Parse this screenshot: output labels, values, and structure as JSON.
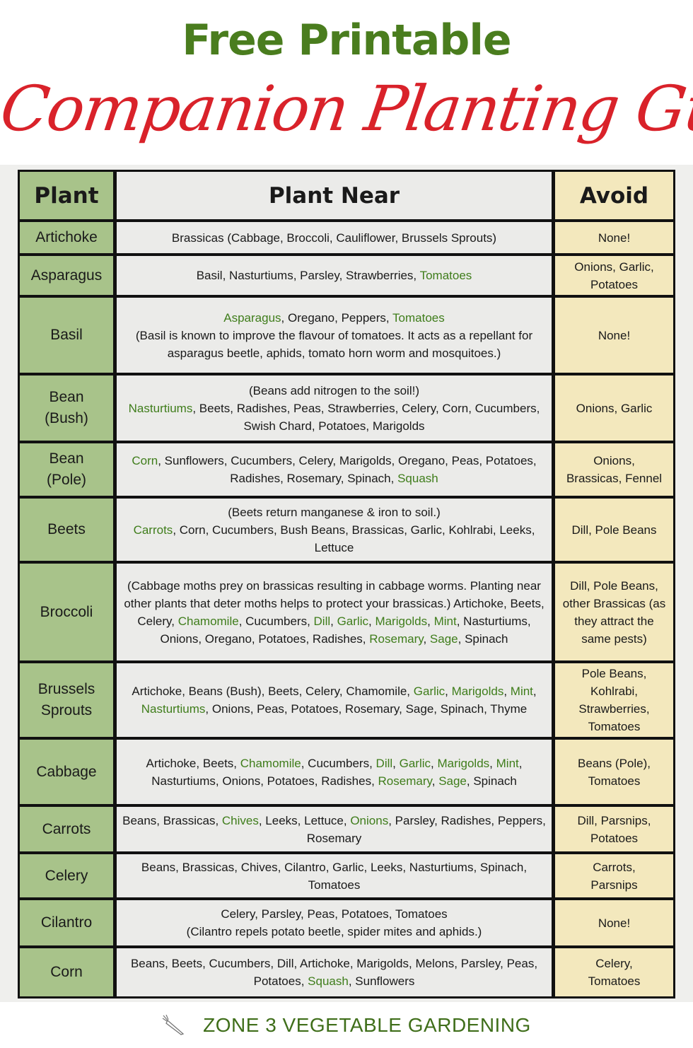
{
  "header": {
    "title_line1": "Free Printable",
    "title_line2": "Companion Planting Guide"
  },
  "colors": {
    "title_green": "#4a7d1e",
    "title_red": "#d9222a",
    "plant_column": "#a8c38a",
    "near_column": "#ebebe9",
    "avoid_column": "#f3e8bd",
    "highlight_text": "#3f7d1b"
  },
  "table": {
    "columns": [
      "Plant",
      "Plant Near",
      "Avoid"
    ],
    "rows": [
      {
        "plant": "Artichoke",
        "h": 44,
        "near": [
          {
            "t": "Brassicas (Cabbage, Broccoli, Cauliflower, Brussels Sprouts)"
          }
        ],
        "avoid": "None!"
      },
      {
        "plant": "Asparagus",
        "h": 55,
        "near": [
          {
            "t": "Basil, Nasturtiums, Parsley, Strawberries, "
          },
          {
            "t": "Tomatoes",
            "g": true
          }
        ],
        "avoid": "Onions, Garlic, Potatoes"
      },
      {
        "plant": "Basil",
        "h": 106,
        "near": [
          {
            "t": "Asparagus",
            "g": true
          },
          {
            "t": ", Oregano, Peppers, "
          },
          {
            "t": "Tomatoes",
            "g": true
          },
          {
            "t": "\n(Basil is known to improve the flavour of tomatoes.  It acts as a repellant for asparagus beetle, aphids, tomato horn worm and mosquitoes.)"
          }
        ],
        "avoid": "None!"
      },
      {
        "plant": "Bean\n(Bush)",
        "h": 92,
        "near": [
          {
            "t": "(Beans add nitrogen to the soil!)\n"
          },
          {
            "t": "Nasturtiums",
            "g": true
          },
          {
            "t": ", Beets, Radishes, Peas, Strawberries,  Celery, Corn, Cucumbers, Swish Chard, Potatoes, Marigolds"
          }
        ],
        "avoid": "Onions, Garlic"
      },
      {
        "plant": "Bean\n(Pole)",
        "h": 74,
        "near": [
          {
            "t": "Corn",
            "g": true
          },
          {
            "t": ", Sunflowers, Cucumbers, Celery, Marigolds, Oregano, Peas, Potatoes, Radishes, Rosemary, Spinach, "
          },
          {
            "t": "Squash",
            "g": true
          }
        ],
        "avoid": "Onions,\nBrassicas, Fennel"
      },
      {
        "plant": "Beets",
        "h": 88,
        "near": [
          {
            "t": "(Beets return manganese & iron to soil.)\n"
          },
          {
            "t": "Carrots",
            "g": true
          },
          {
            "t": ", Corn,  Cucumbers, Bush Beans, Brassicas, Garlic, Kohlrabi, Leeks, Lettuce"
          }
        ],
        "avoid": "Dill, Pole Beans"
      },
      {
        "plant": "Broccoli",
        "h": 137,
        "near": [
          {
            "t": "(Cabbage moths prey on brassicas resulting in cabbage worms. Planting near other plants that deter moths helps to protect your brassicas.)  Artichoke, Beets, Celery, "
          },
          {
            "t": "Chamomile",
            "g": true
          },
          {
            "t": ", Cucumbers, "
          },
          {
            "t": "Dill",
            "g": true
          },
          {
            "t": ", "
          },
          {
            "t": "Garlic",
            "g": true
          },
          {
            "t": ", "
          },
          {
            "t": "Marigolds",
            "g": true
          },
          {
            "t": ", "
          },
          {
            "t": "Mint",
            "g": true
          },
          {
            "t": ", Nasturtiums, Onions, Oregano, Potatoes, Radishes, "
          },
          {
            "t": "Rosemary",
            "g": true
          },
          {
            "t": ", "
          },
          {
            "t": "Sage",
            "g": true
          },
          {
            "t": ", Spinach"
          }
        ],
        "avoid": "Dill, Pole Beans, other Brassicas (as they attract the same pests)"
      },
      {
        "plant": "Brussels\nSprouts",
        "h": 101,
        "near": [
          {
            "t": "Artichoke, Beans (Bush),  Beets, Celery, Chamomile, "
          },
          {
            "t": "Garlic",
            "g": true
          },
          {
            "t": ", "
          },
          {
            "t": "Marigolds",
            "g": true
          },
          {
            "t": ", "
          },
          {
            "t": "Mint",
            "g": true
          },
          {
            "t": ", "
          },
          {
            "t": "Nasturtiums",
            "g": true
          },
          {
            "t": ", Onions, Peas, Potatoes, Rosemary, Sage, Spinach, Thyme"
          }
        ],
        "avoid": "Pole Beans, Kohlrabi, Strawberries, Tomatoes"
      },
      {
        "plant": "Cabbage",
        "h": 91,
        "near": [
          {
            "t": "Artichoke, Beets, "
          },
          {
            "t": "Chamomile",
            "g": true
          },
          {
            "t": ", Cucumbers, "
          },
          {
            "t": "Dill",
            "g": true
          },
          {
            "t": ", "
          },
          {
            "t": "Garlic",
            "g": true
          },
          {
            "t": ", "
          },
          {
            "t": "Marigolds",
            "g": true
          },
          {
            "t": ", "
          },
          {
            "t": "Mint",
            "g": true
          },
          {
            "t": ", Nasturtiums, Onions, Potatoes, Radishes, "
          },
          {
            "t": "Rosemary",
            "g": true
          },
          {
            "t": ", "
          },
          {
            "t": "Sage",
            "g": true
          },
          {
            "t": ", Spinach"
          }
        ],
        "avoid": "Beans (Pole), Tomatoes"
      },
      {
        "plant": "Carrots",
        "h": 63,
        "near": [
          {
            "t": "Beans, Brassicas, "
          },
          {
            "t": "Chives",
            "g": true
          },
          {
            "t": ", Leeks, Lettuce, "
          },
          {
            "t": "Onions",
            "g": true
          },
          {
            "t": ", Parsley, Radishes, Peppers, Rosemary"
          }
        ],
        "avoid": "Dill, Parsnips, Potatoes"
      },
      {
        "plant": "Celery",
        "h": 61,
        "near": [
          {
            "t": "Beans, Brassicas, Chives, Cilantro, Garlic, Leeks, Nasturtiums, Spinach, Tomatoes"
          }
        ],
        "avoid": "Carrots,\nParsnips"
      },
      {
        "plant": "Cilantro",
        "h": 64,
        "near": [
          {
            "t": "Celery, Parsley, Peas, Potatoes, Tomatoes\n(Cilantro repels potato beetle, spider mites and aphids.)"
          }
        ],
        "avoid": "None!"
      },
      {
        "plant": "Corn",
        "h": 68,
        "near": [
          {
            "t": "Beans, Beets, Cucumbers, Dill,  Artichoke,  Marigolds, Melons, Parsley, Peas, Potatoes, "
          },
          {
            "t": "Squash",
            "g": true
          },
          {
            "t": ", Sunflowers"
          }
        ],
        "avoid": "Celery,\nTomatoes"
      }
    ]
  },
  "footer": {
    "text": "ZONE 3 VEGETABLE GARDENING",
    "icon": "carrot-icon"
  }
}
